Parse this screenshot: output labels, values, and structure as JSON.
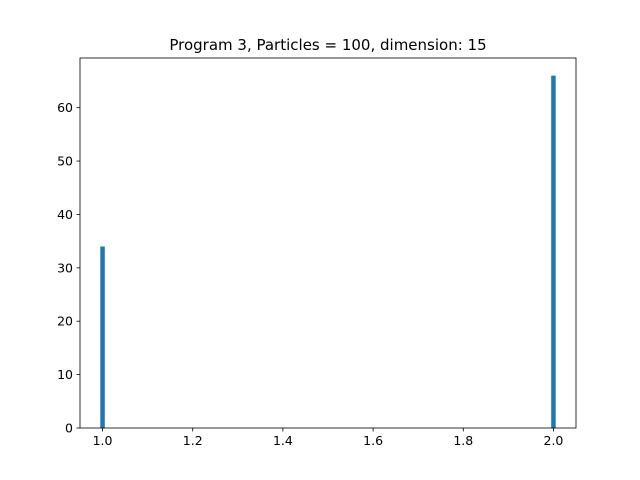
{
  "chart_data": {
    "type": "bar",
    "title": "Program 3, Particles = 100, dimension: 15",
    "xlabel": "",
    "ylabel": "",
    "bars": [
      {
        "x": 1.0,
        "value": 34
      },
      {
        "x": 2.0,
        "value": 66
      }
    ],
    "bar_width": 0.01,
    "xlim": [
      0.95,
      2.05
    ],
    "ylim": [
      0,
      69.3
    ],
    "x_ticks": [
      1.0,
      1.2,
      1.4,
      1.6,
      1.8,
      2.0
    ],
    "x_tick_labels": [
      "1.0",
      "1.2",
      "1.4",
      "1.6",
      "1.8",
      "2.0"
    ],
    "y_ticks": [
      0,
      10,
      20,
      30,
      40,
      50,
      60
    ],
    "y_tick_labels": [
      "0",
      "10",
      "20",
      "30",
      "40",
      "50",
      "60"
    ],
    "grid": false,
    "bar_color": "#1f77b4"
  }
}
